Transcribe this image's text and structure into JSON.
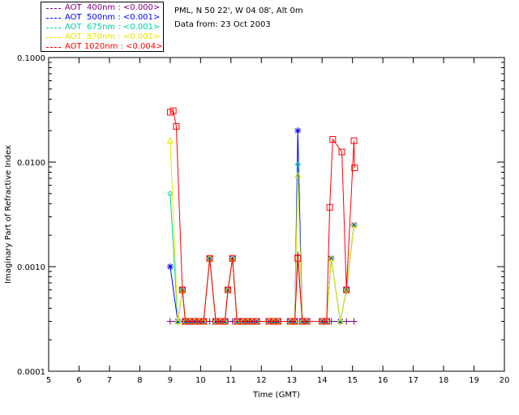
{
  "legend": [
    {
      "label": "AOT  400nm : <0.000>",
      "color": "#800080"
    },
    {
      "label": "AOT  500nm : <0.001>",
      "color": "#0000ff"
    },
    {
      "label": "AOT  675nm : <0.001>",
      "color": "#00d0a0"
    },
    {
      "label": "AOT  870nm : <0.001>",
      "color": "#e8e800"
    },
    {
      "label": "AOT 1020nm : <0.004>",
      "color": "#ff0000"
    }
  ],
  "info": {
    "location": "PML, N 50 22', W 04 08', Alt 0m",
    "data_from": "Data from: 23 Oct 2003"
  },
  "chart_data": {
    "type": "line",
    "xlabel": "Time (GMT)",
    "ylabel": "Imaginary Part of Refractive Index",
    "xlim": [
      5,
      20
    ],
    "ylim": [
      0.0001,
      0.1
    ],
    "yscale": "log",
    "x_ticks": [
      "5",
      "6",
      "7",
      "8",
      "9",
      "10",
      "11",
      "12",
      "13",
      "14",
      "15",
      "16",
      "17",
      "18",
      "19",
      "20"
    ],
    "y_ticks": [
      {
        "value": 0.0001,
        "label": "0.0001"
      },
      {
        "value": 0.001,
        "label": "0.0010"
      },
      {
        "value": 0.01,
        "label": "0.0100"
      },
      {
        "value": 0.1,
        "label": "0.1000"
      }
    ],
    "series": [
      {
        "name": "AOT  400nm : <0.000>",
        "color": "#800080",
        "marker": "plus",
        "x": [
          9.0,
          9.25,
          9.4,
          9.5,
          9.65,
          9.8,
          9.95,
          10.1,
          10.3,
          10.5,
          10.65,
          10.8,
          10.9,
          11.05,
          11.2,
          11.4,
          11.55,
          11.7,
          11.85,
          12.25,
          12.4,
          12.55,
          12.95,
          13.1,
          13.2,
          13.35,
          13.5,
          14.0,
          14.15,
          14.3,
          14.6,
          14.8,
          15.05
        ],
        "values": [
          0.0003,
          0.0003,
          0.0003,
          0.0003,
          0.0003,
          0.0003,
          0.0003,
          0.0003,
          0.0003,
          0.0003,
          0.0003,
          0.0003,
          0.0003,
          0.0003,
          0.0003,
          0.0003,
          0.0003,
          0.0003,
          0.0003,
          0.0003,
          0.0003,
          0.0003,
          0.0003,
          0.0003,
          0.0013,
          0.0003,
          0.0003,
          0.0003,
          0.0003,
          0.0003,
          0.0003,
          0.0003,
          0.0003
        ]
      },
      {
        "name": "AOT  500nm : <0.001>",
        "color": "#0000ff",
        "marker": "star",
        "x": [
          9.0,
          9.25,
          9.4,
          9.5,
          9.65,
          9.8,
          9.95,
          10.1,
          10.3,
          10.5,
          10.65,
          10.8,
          10.9,
          11.05,
          11.2,
          11.4,
          11.55,
          11.7,
          11.85,
          12.25,
          12.4,
          12.55,
          12.95,
          13.1,
          13.2,
          13.35,
          13.5,
          14.0,
          14.15,
          14.3,
          14.6,
          14.8,
          15.05
        ],
        "values": [
          0.001,
          0.0003,
          0.0006,
          0.0003,
          0.0003,
          0.0003,
          0.0003,
          0.0003,
          0.0012,
          0.0003,
          0.0003,
          0.0003,
          0.0006,
          0.0012,
          0.0003,
          0.0003,
          0.0003,
          0.0003,
          0.0003,
          0.0003,
          0.0003,
          0.0003,
          0.0003,
          0.0003,
          0.02,
          0.0003,
          0.0003,
          0.0003,
          0.0003,
          0.0012,
          0.0003,
          0.0006,
          0.0025
        ]
      },
      {
        "name": "AOT  675nm : <0.001>",
        "color": "#00d0a0",
        "marker": "diamond",
        "x": [
          9.0,
          9.25,
          9.4,
          9.5,
          9.65,
          9.8,
          9.95,
          10.1,
          10.3,
          10.5,
          10.65,
          10.8,
          10.9,
          11.05,
          11.2,
          11.4,
          11.55,
          11.7,
          11.85,
          12.25,
          12.4,
          12.55,
          12.95,
          13.1,
          13.2,
          13.35,
          13.5,
          14.0,
          14.15,
          14.3,
          14.6,
          14.8,
          15.05
        ],
        "values": [
          0.005,
          0.0003,
          0.0006,
          0.0003,
          0.0003,
          0.0003,
          0.0003,
          0.0003,
          0.0012,
          0.0003,
          0.0003,
          0.0003,
          0.0006,
          0.0012,
          0.0003,
          0.0003,
          0.0003,
          0.0003,
          0.0003,
          0.0003,
          0.0003,
          0.0003,
          0.0003,
          0.0003,
          0.0095,
          0.0003,
          0.0003,
          0.0003,
          0.0003,
          0.0012,
          0.0003,
          0.0006,
          0.0025
        ]
      },
      {
        "name": "AOT  870nm : <0.001>",
        "color": "#e8e800",
        "marker": "triangle",
        "x": [
          9.0,
          9.25,
          9.4,
          9.5,
          9.65,
          9.8,
          9.95,
          10.1,
          10.3,
          10.5,
          10.65,
          10.8,
          10.9,
          11.05,
          11.2,
          11.4,
          11.55,
          11.7,
          11.85,
          12.25,
          12.4,
          12.55,
          12.95,
          13.1,
          13.2,
          13.35,
          13.5,
          14.0,
          14.15,
          14.3,
          14.6,
          14.8,
          15.05
        ],
        "values": [
          0.016,
          0.0003,
          0.0006,
          0.0003,
          0.0003,
          0.0003,
          0.0003,
          0.0003,
          0.0012,
          0.0003,
          0.0003,
          0.0003,
          0.0006,
          0.0012,
          0.0003,
          0.0003,
          0.0003,
          0.0003,
          0.0003,
          0.0003,
          0.0003,
          0.0003,
          0.0003,
          0.0003,
          0.0075,
          0.0003,
          0.0003,
          0.0003,
          0.0003,
          0.0012,
          0.0003,
          0.0006,
          0.0025
        ]
      },
      {
        "name": "AOT 1020nm : <0.004>",
        "color": "#ff0000",
        "marker": "square",
        "x": [
          9.0,
          9.1,
          9.2,
          9.4,
          9.5,
          9.65,
          9.8,
          9.95,
          10.1,
          10.3,
          10.5,
          10.65,
          10.8,
          10.9,
          11.05,
          11.2,
          11.4,
          11.55,
          11.7,
          11.85,
          12.25,
          12.4,
          12.55,
          12.95,
          13.1,
          13.2,
          13.35,
          13.5,
          14.0,
          14.15,
          14.25,
          14.35,
          14.65,
          14.8,
          15.05,
          15.07
        ],
        "values": [
          0.03,
          0.031,
          0.022,
          0.0006,
          0.0003,
          0.0003,
          0.0003,
          0.0003,
          0.0003,
          0.0012,
          0.0003,
          0.0003,
          0.0003,
          0.0006,
          0.0012,
          0.0003,
          0.0003,
          0.0003,
          0.0003,
          0.0003,
          0.0003,
          0.0003,
          0.0003,
          0.0003,
          0.0003,
          0.0012,
          0.0003,
          0.0003,
          0.0003,
          0.0003,
          0.0037,
          0.0165,
          0.0125,
          0.0006,
          0.016,
          0.0088
        ]
      }
    ]
  }
}
